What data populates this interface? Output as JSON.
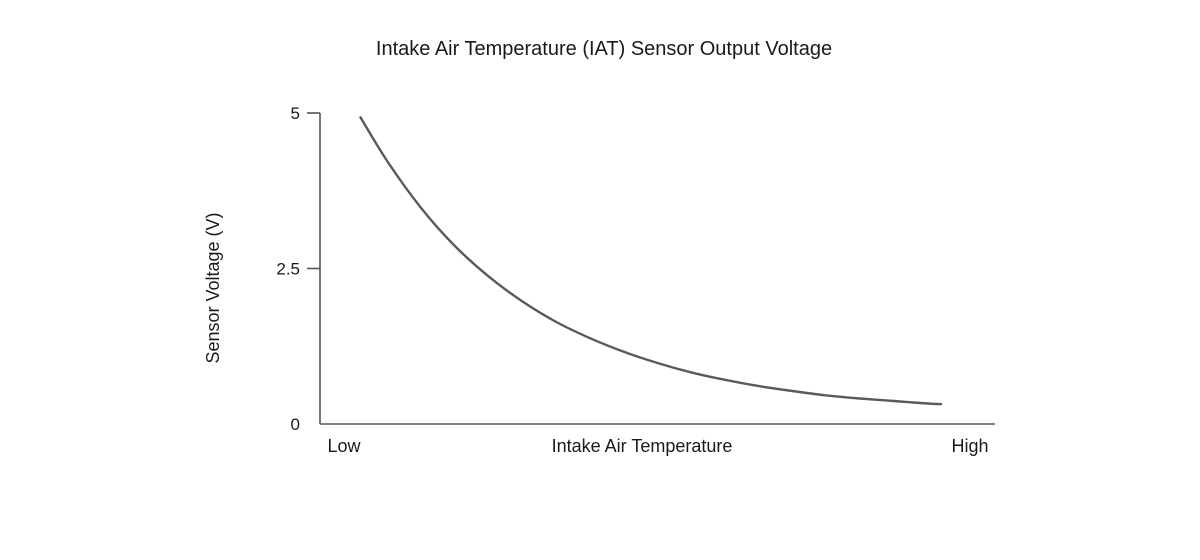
{
  "chart_data": {
    "type": "line",
    "title": "Intake Air Temperature (IAT) Sensor Output Voltage",
    "xlabel": "Intake Air Temperature",
    "ylabel": "Sensor Voltage (V)",
    "x_tick_labels": {
      "low": "Low",
      "high": "High"
    },
    "xlim": [
      0,
      1
    ],
    "ylim": [
      0,
      5
    ],
    "y_ticks": [
      0,
      2.5,
      5
    ],
    "y_tick_labels": [
      "0",
      "2.5",
      "5"
    ],
    "grid": false,
    "legend": "none",
    "line_color": "#5a5a5a",
    "axis_color": "#555555",
    "series": [
      {
        "x": [
          0.06,
          0.1,
          0.15,
          0.2,
          0.25,
          0.3,
          0.35,
          0.4,
          0.45,
          0.5,
          0.55,
          0.6,
          0.65,
          0.7,
          0.75,
          0.8,
          0.85,
          0.9,
          0.92
        ],
        "values": [
          4.93,
          4.22,
          3.47,
          2.86,
          2.37,
          1.97,
          1.64,
          1.38,
          1.16,
          0.98,
          0.83,
          0.71,
          0.61,
          0.53,
          0.46,
          0.41,
          0.37,
          0.33,
          0.32
        ]
      }
    ]
  }
}
